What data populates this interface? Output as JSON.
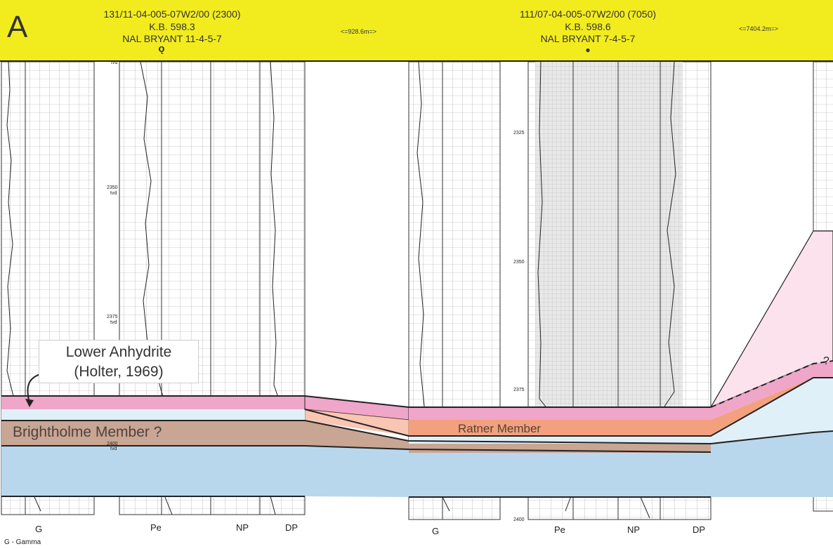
{
  "header": {
    "panel_letter": "A",
    "well1": {
      "uwi": "131/11-04-005-07W2/00 (2300)",
      "kb": "K.B. 598.3",
      "name": "NAL BRYANT 11-4-5-7",
      "symbol": "ǫ"
    },
    "dist1": "<=928.6m=>",
    "well2": {
      "uwi": "111/07-04-005-07W2/00 (7050)",
      "kb": "K.B. 598.6",
      "name": "NAL BRYANT 7-4-5-7",
      "symbol": "●"
    },
    "dist2": "<=7404.2m=>"
  },
  "depth_ticks_well1": [
    {
      "value": "2350",
      "unit": "tvd"
    },
    {
      "value": "2375",
      "unit": "tvd"
    },
    {
      "value": "2400",
      "unit": "tvd"
    }
  ],
  "depth_ticks_well2": [
    "2325",
    "2350",
    "2375",
    "2400"
  ],
  "track_labels_well1": [
    "G",
    "Pe",
    "NP",
    "DP"
  ],
  "track_labels_well2": [
    "G",
    "Pe",
    "NP",
    "DP"
  ],
  "annotations": {
    "callout_line1": "Lower Anhydrite",
    "callout_line2": "(Holter, 1969)",
    "brightholme": "Brightholme Member ?",
    "ratner": "Ratner Member",
    "question": "?"
  },
  "footnote": "G - Gamma",
  "colors": {
    "header": "#f2ec1f",
    "pink": "#f0a6c8",
    "pink_light": "#fbe2ec",
    "orange": "#f3a07e",
    "tan": "#c9a594",
    "blue": "#b9d7ec",
    "blue_light": "#e0f0f9"
  }
}
